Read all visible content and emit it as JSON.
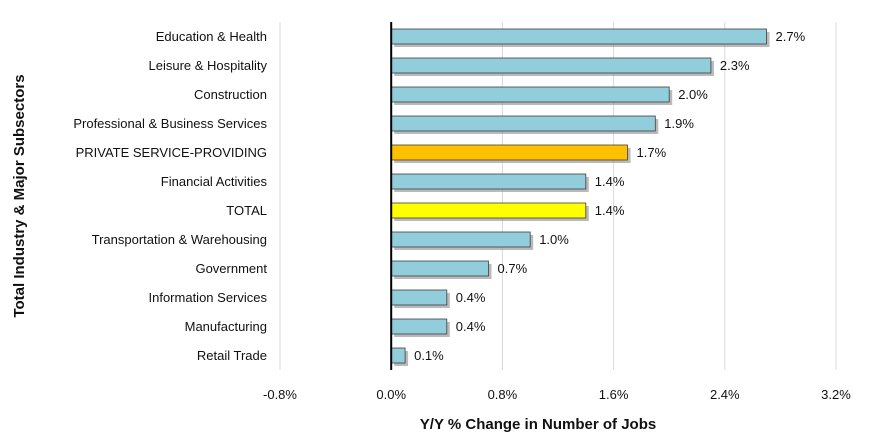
{
  "chart_data": {
    "type": "bar",
    "orientation": "horizontal",
    "categories": [
      "Education & Health",
      "Leisure & Hospitality",
      "Construction",
      "Professional & Business Services",
      "PRIVATE SERVICE-PROVIDING",
      "Financial Activities",
      "TOTAL",
      "Transportation & Warehousing",
      "Government",
      "Information Services",
      "Manufacturing",
      "Retail Trade"
    ],
    "values": [
      2.7,
      2.3,
      2.0,
      1.9,
      1.7,
      1.4,
      1.4,
      1.0,
      0.7,
      0.4,
      0.4,
      0.1
    ],
    "value_labels": [
      "2.7%",
      "2.3%",
      "2.0%",
      "1.9%",
      "1.7%",
      "1.4%",
      "1.4%",
      "1.0%",
      "0.7%",
      "0.4%",
      "0.4%",
      "0.1%"
    ],
    "bar_colors": [
      "#92cddc",
      "#92cddc",
      "#92cddc",
      "#92cddc",
      "#ffc000",
      "#92cddc",
      "#ffff00",
      "#92cddc",
      "#92cddc",
      "#92cddc",
      "#92cddc",
      "#92cddc"
    ],
    "xlabel": "Y/Y % Change in Number of Jobs",
    "ylabel": "Total Industry & Major Subsectors",
    "xlim": [
      -0.8,
      3.2
    ],
    "xticks": [
      -0.8,
      0.0,
      0.8,
      1.6,
      2.4,
      3.2
    ],
    "xtick_labels": [
      "-0.8%",
      "0.0%",
      "0.8%",
      "1.6%",
      "2.4%",
      "3.2%"
    ],
    "grid": "vertical",
    "legend": "none"
  }
}
